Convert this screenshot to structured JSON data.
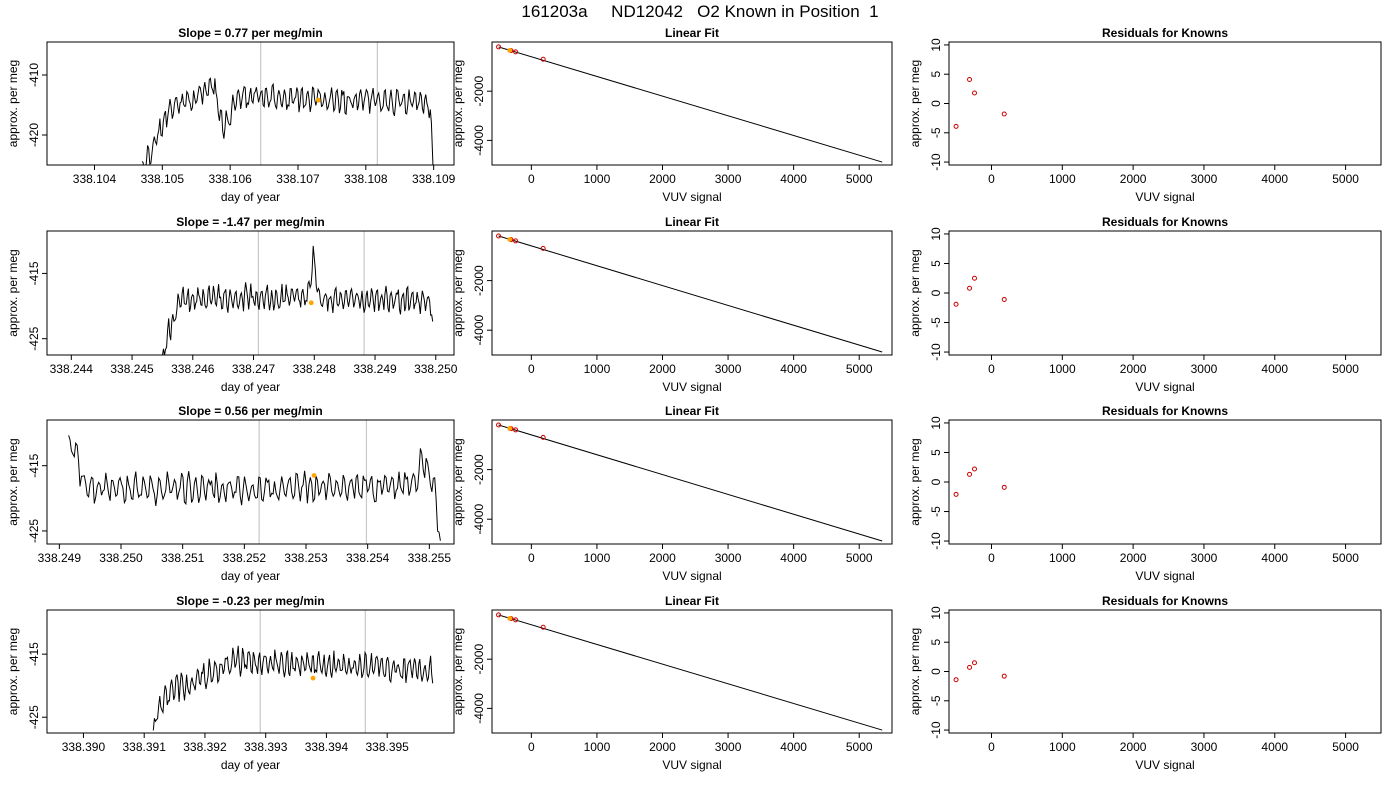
{
  "figure": {
    "title": "161203a     ND12042   O2 Known in Position  1",
    "colors": {
      "trace": "#000000",
      "ref_line": "#c8c8c8",
      "highlight": "#ffa500",
      "residual": "#cc0000",
      "axis": "#000000"
    }
  },
  "chart_data": [
    {
      "type": "line",
      "title": "Slope =  0.77  per meg/min",
      "xlabel": "day of year",
      "ylabel": "approx. per meg",
      "xlim": [
        338.1033,
        338.1093
      ],
      "ylim": [
        -425,
        -404.5
      ],
      "xticks": [
        338.104,
        338.105,
        338.106,
        338.107,
        338.108,
        338.109
      ],
      "xtick_labels": [
        "338.104",
        "338.105",
        "338.106",
        "338.107",
        "338.108",
        "338.109"
      ],
      "yticks": [
        -420,
        -410
      ],
      "ytick_labels": [
        "-420",
        "-410"
      ],
      "vlines": [
        338.10645,
        338.10817
      ],
      "highlight_point": [
        338.1073,
        -414.2
      ],
      "trace": {
        "x_start": 338.1047,
        "x_end": 338.109,
        "level": -414.5,
        "wiggle": 1.6,
        "seed": 11,
        "anchors": [
          [
            338.1047,
            -426
          ],
          [
            338.1049,
            -421
          ],
          [
            338.1051,
            -415.5
          ],
          [
            338.1055,
            -414
          ],
          [
            338.10575,
            -411
          ],
          [
            338.1059,
            -419.5
          ],
          [
            338.1061,
            -413.5
          ],
          [
            338.1071,
            -414
          ],
          [
            338.1089,
            -414.5
          ],
          [
            338.10895,
            -416
          ],
          [
            338.109,
            -426
          ]
        ]
      }
    },
    {
      "type": "line",
      "title": "Linear Fit",
      "xlabel": "VUV signal",
      "ylabel": "approx. per meg",
      "xlim": [
        -600,
        5500
      ],
      "ylim": [
        -5000,
        0
      ],
      "xticks": [
        0,
        1000,
        2000,
        3000,
        4000,
        5000
      ],
      "xtick_labels": [
        "0",
        "1000",
        "2000",
        "3000",
        "4000",
        "5000"
      ],
      "yticks": [
        -4000,
        -2000
      ],
      "ytick_labels": [
        "-4000",
        "-2000"
      ],
      "fit_line": [
        [
          -500,
          -200
        ],
        [
          5350,
          -4880
        ]
      ],
      "points": [
        [
          -500,
          -200
        ],
        [
          -310,
          -350
        ],
        [
          -240,
          -400
        ],
        [
          180,
          -700
        ]
      ],
      "highlight_point": [
        -330,
        -340
      ]
    },
    {
      "type": "scatter",
      "title": "Residuals for Knowns",
      "xlabel": "VUV signal",
      "ylabel": "approx. per meg",
      "xlim": [
        -600,
        5500
      ],
      "ylim": [
        -10.5,
        10.5
      ],
      "xticks": [
        0,
        1000,
        2000,
        3000,
        4000,
        5000
      ],
      "xtick_labels": [
        "0",
        "1000",
        "2000",
        "3000",
        "4000",
        "5000"
      ],
      "yticks": [
        -10,
        -5,
        0,
        5,
        10
      ],
      "ytick_labels": [
        "-10",
        "-5",
        "0",
        "5",
        "10"
      ],
      "points": [
        [
          -500,
          -3.9
        ],
        [
          -310,
          4.1
        ],
        [
          -240,
          1.8
        ],
        [
          180,
          -1.8
        ]
      ]
    },
    {
      "type": "line",
      "title": "Slope =  -1.47  per meg/min",
      "xlabel": "day of year",
      "ylabel": "approx. per meg",
      "xlim": [
        338.2436,
        338.2503
      ],
      "ylim": [
        -427.5,
        -408.5
      ],
      "xticks": [
        338.244,
        338.245,
        338.246,
        338.247,
        338.248,
        338.249,
        338.25
      ],
      "xtick_labels": [
        "338.244",
        "338.245",
        "338.246",
        "338.247",
        "338.248",
        "338.249",
        "338.250"
      ],
      "yticks": [
        -425,
        -415
      ],
      "ytick_labels": [
        "-425",
        "-415"
      ],
      "vlines": [
        338.24708,
        338.24882
      ],
      "highlight_point": [
        338.24795,
        -419.5
      ],
      "trace": {
        "x_start": 338.2455,
        "x_end": 338.24995,
        "level": -418.8,
        "wiggle": 1.5,
        "seed": 23,
        "anchors": [
          [
            338.2455,
            -428
          ],
          [
            338.2456,
            -424
          ],
          [
            338.2458,
            -419
          ],
          [
            338.2479,
            -418.5
          ],
          [
            338.24798,
            -412.5
          ],
          [
            338.24808,
            -419
          ],
          [
            338.2499,
            -419
          ],
          [
            338.24995,
            -422
          ]
        ]
      }
    },
    {
      "type": "line",
      "title": "Linear Fit",
      "xlabel": "VUV signal",
      "ylabel": "approx. per meg",
      "xlim": [
        -600,
        5500
      ],
      "ylim": [
        -5000,
        0
      ],
      "xticks": [
        0,
        1000,
        2000,
        3000,
        4000,
        5000
      ],
      "xtick_labels": [
        "0",
        "1000",
        "2000",
        "3000",
        "4000",
        "5000"
      ],
      "yticks": [
        -4000,
        -2000
      ],
      "ytick_labels": [
        "-4000",
        "-2000"
      ],
      "fit_line": [
        [
          -500,
          -200
        ],
        [
          5350,
          -4880
        ]
      ],
      "points": [
        [
          -500,
          -200
        ],
        [
          -310,
          -350
        ],
        [
          -240,
          -400
        ],
        [
          180,
          -700
        ]
      ],
      "highlight_point": [
        -330,
        -340
      ]
    },
    {
      "type": "scatter",
      "title": "Residuals for Knowns",
      "xlabel": "VUV signal",
      "ylabel": "approx. per meg",
      "xlim": [
        -600,
        5500
      ],
      "ylim": [
        -10.5,
        10.5
      ],
      "xticks": [
        0,
        1000,
        2000,
        3000,
        4000,
        5000
      ],
      "xtick_labels": [
        "0",
        "1000",
        "2000",
        "3000",
        "4000",
        "5000"
      ],
      "yticks": [
        -10,
        -5,
        0,
        5,
        10
      ],
      "ytick_labels": [
        "-10",
        "-5",
        "0",
        "5",
        "10"
      ],
      "points": [
        [
          -500,
          -1.9
        ],
        [
          -310,
          0.8
        ],
        [
          -240,
          2.5
        ],
        [
          180,
          -1.1
        ]
      ]
    },
    {
      "type": "line",
      "title": "Slope =  0.56  per meg/min",
      "xlabel": "day of year",
      "ylabel": "approx. per meg",
      "xlim": [
        338.2488,
        338.2554
      ],
      "ylim": [
        -427,
        -408
      ],
      "xticks": [
        338.249,
        338.25,
        338.251,
        338.252,
        338.253,
        338.254,
        338.255
      ],
      "xtick_labels": [
        "338.249",
        "338.250",
        "338.251",
        "338.252",
        "338.253",
        "338.254",
        "338.255"
      ],
      "yticks": [
        -425,
        -415
      ],
      "ytick_labels": [
        "-425",
        "-415"
      ],
      "vlines": [
        338.25224,
        338.25398
      ],
      "highlight_point": [
        338.25313,
        -416.5
      ],
      "trace": {
        "x_start": 338.24915,
        "x_end": 338.25518,
        "level": -419.3,
        "wiggle": 1.7,
        "seed": 37,
        "anchors": [
          [
            338.24915,
            -413
          ],
          [
            338.24925,
            -412.5
          ],
          [
            338.2494,
            -418.5
          ],
          [
            338.2524,
            -418.5
          ],
          [
            338.2548,
            -418
          ],
          [
            338.25488,
            -413.5
          ],
          [
            338.2551,
            -419
          ],
          [
            338.25518,
            -428
          ]
        ]
      }
    },
    {
      "type": "line",
      "title": "Linear Fit",
      "xlabel": "VUV signal",
      "ylabel": "approx. per meg",
      "xlim": [
        -600,
        5500
      ],
      "ylim": [
        -5000,
        0
      ],
      "xticks": [
        0,
        1000,
        2000,
        3000,
        4000,
        5000
      ],
      "xtick_labels": [
        "0",
        "1000",
        "2000",
        "3000",
        "4000",
        "5000"
      ],
      "yticks": [
        -4000,
        -2000
      ],
      "ytick_labels": [
        "-4000",
        "-2000"
      ],
      "fit_line": [
        [
          -500,
          -200
        ],
        [
          5350,
          -4880
        ]
      ],
      "points": [
        [
          -500,
          -200
        ],
        [
          -310,
          -350
        ],
        [
          -240,
          -400
        ],
        [
          180,
          -700
        ]
      ],
      "highlight_point": [
        -330,
        -340
      ]
    },
    {
      "type": "scatter",
      "title": "Residuals for Knowns",
      "xlabel": "VUV signal",
      "ylabel": "approx. per meg",
      "xlim": [
        -600,
        5500
      ],
      "ylim": [
        -10.5,
        10.5
      ],
      "xticks": [
        0,
        1000,
        2000,
        3000,
        4000,
        5000
      ],
      "xtick_labels": [
        "0",
        "1000",
        "2000",
        "3000",
        "4000",
        "5000"
      ],
      "yticks": [
        -10,
        -5,
        0,
        5,
        10
      ],
      "ytick_labels": [
        "-10",
        "-5",
        "0",
        "5",
        "10"
      ],
      "points": [
        [
          -500,
          -2.1
        ],
        [
          -310,
          1.3
        ],
        [
          -240,
          2.2
        ],
        [
          180,
          -0.9
        ]
      ]
    },
    {
      "type": "line",
      "title": "Slope =  -0.23  per meg/min",
      "xlabel": "day of year",
      "ylabel": "approx. per meg",
      "xlim": [
        338.3894,
        338.3961
      ],
      "ylim": [
        -427.5,
        -408
      ],
      "xticks": [
        338.39,
        338.391,
        338.392,
        338.393,
        338.394,
        338.395
      ],
      "xtick_labels": [
        "338.390",
        "338.391",
        "338.392",
        "338.393",
        "338.394",
        "338.395"
      ],
      "yticks": [
        -425,
        -415
      ],
      "ytick_labels": [
        "-425",
        "-415"
      ],
      "vlines": [
        338.39291,
        338.39464
      ],
      "highlight_point": [
        338.39378,
        -418.8
      ],
      "trace": {
        "x_start": 338.39115,
        "x_end": 338.39575,
        "level": -417.2,
        "wiggle": 1.6,
        "seed": 53,
        "anchors": [
          [
            338.39115,
            -429
          ],
          [
            338.3912,
            -425
          ],
          [
            338.3914,
            -421
          ],
          [
            338.392,
            -418.5
          ],
          [
            338.3925,
            -416
          ],
          [
            338.3957,
            -417.5
          ],
          [
            338.39575,
            -418
          ]
        ]
      }
    },
    {
      "type": "line",
      "title": "Linear Fit",
      "xlabel": "VUV signal",
      "ylabel": "approx. per meg",
      "xlim": [
        -600,
        5500
      ],
      "ylim": [
        -5000,
        0
      ],
      "xticks": [
        0,
        1000,
        2000,
        3000,
        4000,
        5000
      ],
      "xtick_labels": [
        "0",
        "1000",
        "2000",
        "3000",
        "4000",
        "5000"
      ],
      "yticks": [
        -4000,
        -2000
      ],
      "ytick_labels": [
        "-4000",
        "-2000"
      ],
      "fit_line": [
        [
          -500,
          -200
        ],
        [
          5350,
          -4880
        ]
      ],
      "points": [
        [
          -500,
          -200
        ],
        [
          -310,
          -350
        ],
        [
          -240,
          -400
        ],
        [
          180,
          -700
        ]
      ],
      "highlight_point": [
        -330,
        -340
      ]
    },
    {
      "type": "scatter",
      "title": "Residuals for Knowns",
      "xlabel": "VUV signal",
      "ylabel": "approx. per meg",
      "xlim": [
        -600,
        5500
      ],
      "ylim": [
        -10.5,
        10.5
      ],
      "xticks": [
        0,
        1000,
        2000,
        3000,
        4000,
        5000
      ],
      "xtick_labels": [
        "0",
        "1000",
        "2000",
        "3000",
        "4000",
        "5000"
      ],
      "yticks": [
        -10,
        -5,
        0,
        5,
        10
      ],
      "ytick_labels": [
        "-10",
        "-5",
        "0",
        "5",
        "10"
      ],
      "points": [
        [
          -500,
          -1.4
        ],
        [
          -310,
          0.7
        ],
        [
          -240,
          1.5
        ],
        [
          180,
          -0.8
        ]
      ]
    }
  ]
}
